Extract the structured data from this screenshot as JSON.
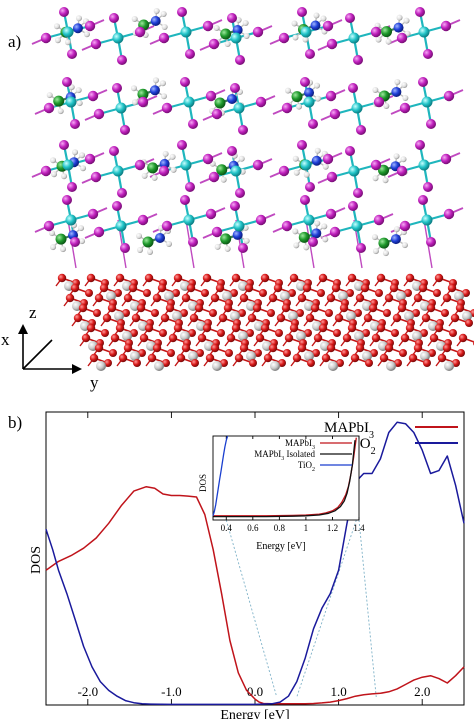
{
  "panel_a": {
    "label": "a)",
    "axes": {
      "z": "z",
      "x": "x",
      "y": "y"
    }
  },
  "panel_b": {
    "label": "b)"
  },
  "chart_data": [
    {
      "type": "line",
      "panel": "b)",
      "xlabel": "Energy [eV]",
      "ylabel": "DOS",
      "xlim": [
        -2.5,
        2.5
      ],
      "ylim": [
        0,
        1
      ],
      "xticks": [
        "-2.0",
        "-1.0",
        "0.0",
        "1.0",
        "2.0"
      ],
      "xtick_values": [
        -2.0,
        -1.0,
        0.0,
        1.0,
        2.0
      ],
      "legend_position": "top-right",
      "series": [
        {
          "name": "MAPbI3",
          "legend_main": "MAPbI",
          "legend_sub": "3",
          "color": "#c0141b",
          "x": [
            -2.5,
            -2.35,
            -2.2,
            -2.05,
            -1.9,
            -1.75,
            -1.6,
            -1.45,
            -1.3,
            -1.2,
            -1.1,
            -1.0,
            -0.9,
            -0.8,
            -0.7,
            -0.6,
            -0.5,
            -0.4,
            -0.3,
            -0.2,
            -0.1,
            0.0,
            0.05,
            0.1,
            0.2,
            0.3,
            0.4,
            0.5,
            0.6,
            0.7,
            0.8,
            0.9,
            1.0,
            1.1,
            1.2,
            1.3,
            1.4,
            1.5,
            1.6,
            1.7,
            1.8,
            1.9,
            2.0,
            2.1,
            2.2,
            2.3,
            2.4,
            2.5
          ],
          "y": [
            0.46,
            0.49,
            0.51,
            0.535,
            0.57,
            0.62,
            0.68,
            0.73,
            0.745,
            0.74,
            0.72,
            0.715,
            0.715,
            0.713,
            0.71,
            0.65,
            0.53,
            0.38,
            0.22,
            0.11,
            0.05,
            0.02,
            0.01,
            0.005,
            0.004,
            0.004,
            0.004,
            0.004,
            0.004,
            0.005,
            0.007,
            0.01,
            0.015,
            0.022,
            0.03,
            0.035,
            0.038,
            0.04,
            0.045,
            0.055,
            0.07,
            0.085,
            0.095,
            0.1,
            0.09,
            0.075,
            0.1,
            0.13
          ]
        },
        {
          "name": "TiO2",
          "legend_main": "TiO",
          "legend_sub": "2",
          "color": "#1a1a9c",
          "x": [
            -2.5,
            -2.42,
            -2.35,
            -2.25,
            -2.15,
            -2.05,
            -1.95,
            -1.85,
            -1.75,
            -1.65,
            -1.55,
            -1.45,
            -1.35,
            -1.25,
            -1.0,
            -0.5,
            0.0,
            0.2,
            0.3,
            0.4,
            0.5,
            0.6,
            0.7,
            0.8,
            0.9,
            1.0,
            1.1,
            1.2,
            1.3,
            1.4,
            1.5,
            1.6,
            1.7,
            1.8,
            1.9,
            2.0,
            2.1,
            2.2,
            2.3,
            2.4,
            2.5
          ],
          "y": [
            0.6,
            0.53,
            0.46,
            0.38,
            0.29,
            0.2,
            0.13,
            0.08,
            0.05,
            0.03,
            0.015,
            0.008,
            0.004,
            0.003,
            0.002,
            0.002,
            0.002,
            0.004,
            0.01,
            0.03,
            0.08,
            0.16,
            0.26,
            0.33,
            0.38,
            0.46,
            0.62,
            0.76,
            0.79,
            0.79,
            0.84,
            0.93,
            0.965,
            0.96,
            0.93,
            0.87,
            0.79,
            0.8,
            0.85,
            0.75,
            0.62
          ]
        }
      ],
      "projection_lines": [
        {
          "from_inset_energy": 0.4,
          "to_energy": 0.26
        },
        {
          "from_inset_energy": 1.38,
          "to_energy": 0.5
        },
        {
          "from_inset_energy": 1.4,
          "to_energy": 1.45
        }
      ]
    },
    {
      "type": "line",
      "panel": "inset",
      "xlabel": "Energy [eV]",
      "ylabel": "DOS",
      "xlim": [
        0.3,
        1.4
      ],
      "ylim": [
        0,
        1
      ],
      "xticks": [
        "0.4",
        "0.6",
        "0.8",
        "1",
        "1.2",
        "1.4"
      ],
      "xtick_values": [
        0.4,
        0.6,
        0.8,
        1.0,
        1.2,
        1.4
      ],
      "legend_position": "top-right",
      "series": [
        {
          "name": "MAPbI3",
          "legend_main": "MAPbI",
          "legend_sub": "3",
          "color": "#c0141b",
          "x": [
            0.3,
            0.5,
            0.7,
            0.9,
            1.0,
            1.1,
            1.15,
            1.2,
            1.24,
            1.27,
            1.3,
            1.32,
            1.34,
            1.36,
            1.38
          ],
          "y": [
            0.05,
            0.05,
            0.05,
            0.055,
            0.06,
            0.07,
            0.085,
            0.11,
            0.15,
            0.21,
            0.3,
            0.4,
            0.55,
            0.75,
            0.98
          ]
        },
        {
          "name": "MAPbI3 Isolated",
          "legend_main": "MAPbI",
          "legend_sub": "3",
          "legend_rest": " Isolated",
          "color": "#111111",
          "x": [
            0.3,
            0.5,
            0.7,
            0.9,
            1.0,
            1.1,
            1.17,
            1.22,
            1.26,
            1.29,
            1.31,
            1.33,
            1.35,
            1.37
          ],
          "y": [
            0.04,
            0.04,
            0.04,
            0.045,
            0.05,
            0.06,
            0.08,
            0.11,
            0.16,
            0.23,
            0.32,
            0.46,
            0.66,
            0.95
          ]
        },
        {
          "name": "TiO2",
          "legend_main": "TiO",
          "legend_sub": "2",
          "color": "#1a3fcf",
          "x": [
            0.3,
            0.31,
            0.32,
            0.33,
            0.34,
            0.35,
            0.36,
            0.37,
            0.38,
            0.39,
            0.4,
            0.41
          ],
          "y": [
            0.05,
            0.1,
            0.18,
            0.28,
            0.38,
            0.48,
            0.58,
            0.68,
            0.78,
            0.87,
            0.95,
            1.0
          ]
        }
      ]
    }
  ]
}
